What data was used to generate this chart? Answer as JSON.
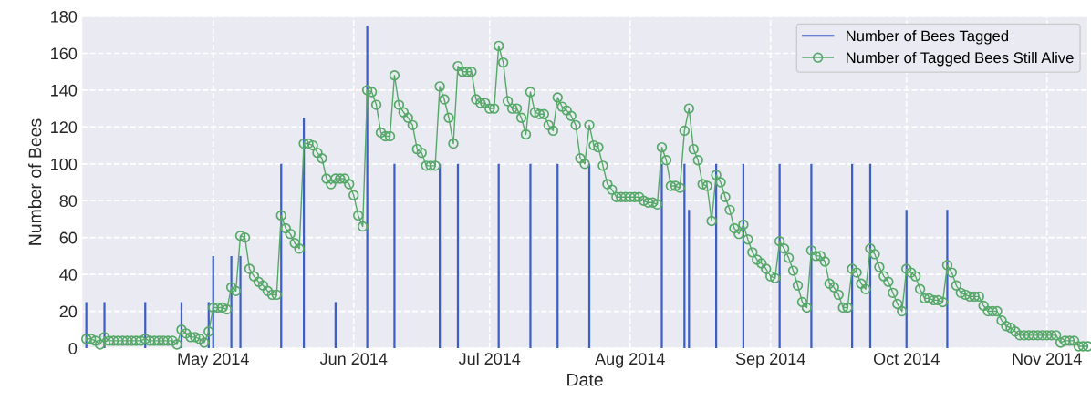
{
  "chart_data": {
    "type": "line",
    "xlabel": "Date",
    "ylabel": "Number of Bees",
    "xlim": [
      "2014-04-02",
      "2014-11-10"
    ],
    "xticks": [
      {
        "value": "2014-05-01",
        "label": "May 2014"
      },
      {
        "value": "2014-06-01",
        "label": "Jun 2014"
      },
      {
        "value": "2014-07-01",
        "label": "Jul 2014"
      },
      {
        "value": "2014-08-01",
        "label": "Aug 2014"
      },
      {
        "value": "2014-09-01",
        "label": "Sep 2014"
      },
      {
        "value": "2014-10-01",
        "label": "Oct 2014"
      },
      {
        "value": "2014-11-01",
        "label": "Nov 2014"
      }
    ],
    "ylim": [
      0,
      180
    ],
    "yticks": [
      0,
      20,
      40,
      60,
      80,
      100,
      120,
      140,
      160,
      180
    ],
    "grid": true,
    "legend": "top right",
    "series": [
      {
        "name": "Number of Bees Tagged",
        "type": "bar",
        "color": "#3d5fc4",
        "x": [
          "2014-04-03",
          "2014-04-07",
          "2014-04-16",
          "2014-04-24",
          "2014-04-30",
          "2014-05-01",
          "2014-05-05",
          "2014-05-07",
          "2014-05-16",
          "2014-05-21",
          "2014-05-28",
          "2014-06-04",
          "2014-06-10",
          "2014-06-20",
          "2014-06-24",
          "2014-07-03",
          "2014-07-10",
          "2014-07-16",
          "2014-07-23",
          "2014-08-08",
          "2014-08-13",
          "2014-08-14",
          "2014-08-20",
          "2014-08-26",
          "2014-09-03",
          "2014-09-10",
          "2014-09-19",
          "2014-09-23",
          "2014-10-01",
          "2014-10-10"
        ],
        "values": [
          25,
          25,
          25,
          25,
          25,
          50,
          50,
          50,
          100,
          125,
          25,
          175,
          100,
          100,
          100,
          100,
          100,
          100,
          100,
          100,
          100,
          75,
          100,
          100,
          100,
          100,
          100,
          100,
          75,
          75
        ]
      },
      {
        "name": "Number of Tagged Bees Still Alive",
        "color": "#55a868",
        "marker": "circle",
        "line_style": "solid",
        "x": [
          "2014-04-03",
          "2014-04-04",
          "2014-04-05",
          "2014-04-06",
          "2014-04-07",
          "2014-04-08",
          "2014-04-09",
          "2014-04-10",
          "2014-04-11",
          "2014-04-12",
          "2014-04-13",
          "2014-04-14",
          "2014-04-15",
          "2014-04-16",
          "2014-04-17",
          "2014-04-18",
          "2014-04-19",
          "2014-04-20",
          "2014-04-21",
          "2014-04-22",
          "2014-04-23",
          "2014-04-24",
          "2014-04-25",
          "2014-04-26",
          "2014-04-27",
          "2014-04-28",
          "2014-04-29",
          "2014-04-30",
          "2014-05-01",
          "2014-05-02",
          "2014-05-03",
          "2014-05-04",
          "2014-05-05",
          "2014-05-06",
          "2014-05-07",
          "2014-05-08",
          "2014-05-09",
          "2014-05-10",
          "2014-05-11",
          "2014-05-12",
          "2014-05-13",
          "2014-05-14",
          "2014-05-15",
          "2014-05-16",
          "2014-05-17",
          "2014-05-18",
          "2014-05-19",
          "2014-05-20",
          "2014-05-21",
          "2014-05-22",
          "2014-05-23",
          "2014-05-24",
          "2014-05-25",
          "2014-05-26",
          "2014-05-27",
          "2014-05-28",
          "2014-05-29",
          "2014-05-30",
          "2014-05-31",
          "2014-06-01",
          "2014-06-02",
          "2014-06-03",
          "2014-06-04",
          "2014-06-05",
          "2014-06-06",
          "2014-06-07",
          "2014-06-08",
          "2014-06-09",
          "2014-06-10",
          "2014-06-11",
          "2014-06-12",
          "2014-06-13",
          "2014-06-14",
          "2014-06-15",
          "2014-06-16",
          "2014-06-17",
          "2014-06-18",
          "2014-06-19",
          "2014-06-20",
          "2014-06-21",
          "2014-06-22",
          "2014-06-23",
          "2014-06-24",
          "2014-06-25",
          "2014-06-26",
          "2014-06-27",
          "2014-06-28",
          "2014-06-29",
          "2014-06-30",
          "2014-07-01",
          "2014-07-02",
          "2014-07-03",
          "2014-07-04",
          "2014-07-05",
          "2014-07-06",
          "2014-07-07",
          "2014-07-08",
          "2014-07-09",
          "2014-07-10",
          "2014-07-11",
          "2014-07-12",
          "2014-07-13",
          "2014-07-14",
          "2014-07-15",
          "2014-07-16",
          "2014-07-17",
          "2014-07-18",
          "2014-07-19",
          "2014-07-20",
          "2014-07-21",
          "2014-07-22",
          "2014-07-23",
          "2014-07-24",
          "2014-07-25",
          "2014-07-26",
          "2014-07-27",
          "2014-07-28",
          "2014-07-29",
          "2014-07-30",
          "2014-07-31",
          "2014-08-01",
          "2014-08-02",
          "2014-08-03",
          "2014-08-04",
          "2014-08-05",
          "2014-08-06",
          "2014-08-07",
          "2014-08-08",
          "2014-08-09",
          "2014-08-10",
          "2014-08-11",
          "2014-08-12",
          "2014-08-13",
          "2014-08-14",
          "2014-08-15",
          "2014-08-16",
          "2014-08-17",
          "2014-08-18",
          "2014-08-19",
          "2014-08-20",
          "2014-08-21",
          "2014-08-22",
          "2014-08-23",
          "2014-08-24",
          "2014-08-25",
          "2014-08-26",
          "2014-08-27",
          "2014-08-28",
          "2014-08-29",
          "2014-08-30",
          "2014-08-31",
          "2014-09-01",
          "2014-09-02",
          "2014-09-03",
          "2014-09-04",
          "2014-09-05",
          "2014-09-06",
          "2014-09-07",
          "2014-09-08",
          "2014-09-09",
          "2014-09-10",
          "2014-09-11",
          "2014-09-12",
          "2014-09-13",
          "2014-09-14",
          "2014-09-15",
          "2014-09-16",
          "2014-09-17",
          "2014-09-18",
          "2014-09-19",
          "2014-09-20",
          "2014-09-21",
          "2014-09-22",
          "2014-09-23",
          "2014-09-24",
          "2014-09-25",
          "2014-09-26",
          "2014-09-27",
          "2014-09-28",
          "2014-09-29",
          "2014-09-30",
          "2014-10-01",
          "2014-10-02",
          "2014-10-03",
          "2014-10-04",
          "2014-10-05",
          "2014-10-06",
          "2014-10-07",
          "2014-10-08",
          "2014-10-09",
          "2014-10-10",
          "2014-10-11",
          "2014-10-12",
          "2014-10-13",
          "2014-10-14",
          "2014-10-15",
          "2014-10-16",
          "2014-10-17",
          "2014-10-18",
          "2014-10-19",
          "2014-10-20",
          "2014-10-21",
          "2014-10-22",
          "2014-10-23",
          "2014-10-24",
          "2014-10-25",
          "2014-10-26",
          "2014-10-27",
          "2014-10-28",
          "2014-10-29",
          "2014-10-30",
          "2014-10-31",
          "2014-11-01",
          "2014-11-02",
          "2014-11-03",
          "2014-11-04",
          "2014-11-05",
          "2014-11-06",
          "2014-11-07",
          "2014-11-08",
          "2014-11-09",
          "2014-11-10"
        ],
        "values": [
          5,
          5,
          4,
          2,
          6,
          4,
          4,
          4,
          4,
          4,
          4,
          4,
          4,
          5,
          4,
          4,
          4,
          4,
          4,
          4,
          2,
          10,
          8,
          6,
          6,
          5,
          3,
          9,
          22,
          22,
          22,
          21,
          33,
          31,
          61,
          60,
          43,
          39,
          36,
          34,
          31,
          29,
          29,
          72,
          65,
          62,
          57,
          54,
          111,
          111,
          110,
          106,
          103,
          92,
          89,
          92,
          92,
          92,
          89,
          83,
          72,
          66,
          140,
          139,
          132,
          117,
          115,
          115,
          148,
          132,
          128,
          125,
          121,
          108,
          106,
          99,
          99,
          99,
          142,
          135,
          125,
          111,
          153,
          150,
          150,
          150,
          135,
          133,
          133,
          130,
          130,
          164,
          155,
          134,
          130,
          130,
          125,
          116,
          139,
          128,
          127,
          127,
          121,
          118,
          136,
          131,
          129,
          126,
          121,
          103,
          100,
          121,
          110,
          109,
          99,
          89,
          86,
          82,
          82,
          82,
          82,
          82,
          82,
          80,
          79,
          79,
          78,
          109,
          102,
          88,
          88,
          87,
          118,
          130,
          108,
          102,
          89,
          88,
          69,
          94,
          90,
          82,
          75,
          65,
          62,
          67,
          59,
          52,
          48,
          46,
          43,
          39,
          38,
          58,
          54,
          49,
          42,
          34,
          25,
          22,
          53,
          50,
          50,
          47,
          35,
          33,
          29,
          22,
          22,
          43,
          41,
          35,
          32,
          54,
          51,
          44,
          39,
          36,
          30,
          24,
          20,
          43,
          41,
          39,
          32,
          27,
          27,
          26,
          26,
          25,
          45,
          41,
          34,
          30,
          29,
          28,
          28,
          28,
          23,
          20,
          20,
          20,
          15,
          12,
          11,
          9,
          7,
          7,
          7,
          7,
          7,
          7,
          7,
          7,
          7,
          3,
          4,
          4,
          4,
          1,
          1,
          1
        ]
      }
    ]
  }
}
